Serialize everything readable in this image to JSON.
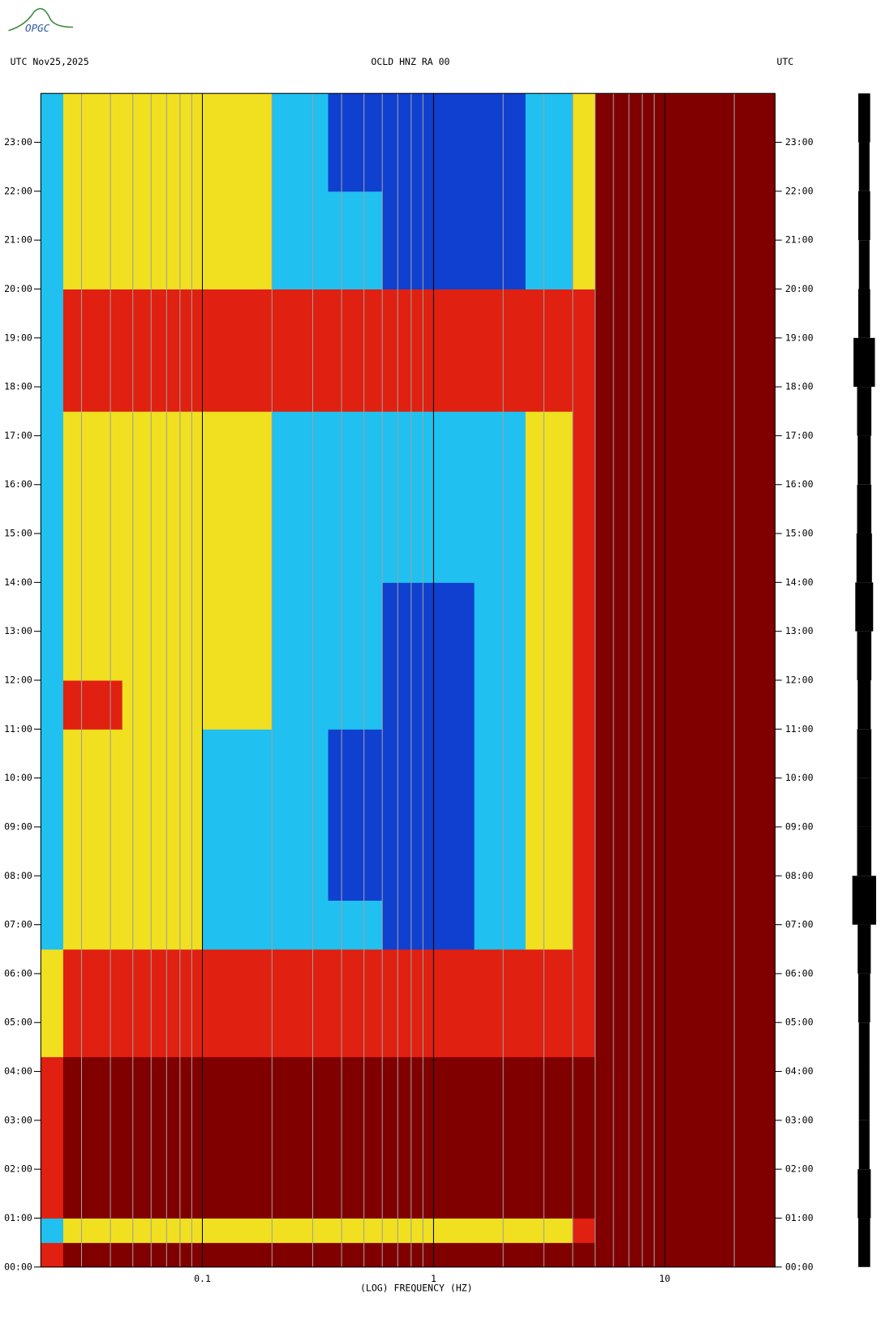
{
  "chart_data": {
    "type": "spectrogram",
    "logo": "OPGC",
    "title_left": "UTC  Nov25,2025",
    "title": "OCLD HNZ RA 00",
    "title_right": "UTC",
    "xlabel": "(LOG) FREQUENCY (HZ)",
    "log_x": true,
    "xlim": [
      0.02,
      30
    ],
    "xticks": [
      0.1,
      1,
      10
    ],
    "x_minor_grid": [
      0.03,
      0.04,
      0.05,
      0.06,
      0.07,
      0.08,
      0.09,
      0.2,
      0.3,
      0.4,
      0.5,
      0.6,
      0.7,
      0.8,
      0.9,
      2,
      3,
      4,
      5,
      6,
      7,
      8,
      9,
      20
    ],
    "ylim": [
      0,
      24
    ],
    "yticks": [
      {
        "value": 0,
        "label": "00:00"
      },
      {
        "value": 1,
        "label": "01:00"
      },
      {
        "value": 2,
        "label": "02:00"
      },
      {
        "value": 3,
        "label": "03:00"
      },
      {
        "value": 4,
        "label": "04:00"
      },
      {
        "value": 5,
        "label": "05:00"
      },
      {
        "value": 6,
        "label": "06:00"
      },
      {
        "value": 7,
        "label": "07:00"
      },
      {
        "value": 8,
        "label": "08:00"
      },
      {
        "value": 9,
        "label": "09:00"
      },
      {
        "value": 10,
        "label": "10:00"
      },
      {
        "value": 11,
        "label": "11:00"
      },
      {
        "value": 12,
        "label": "12:00"
      },
      {
        "value": 13,
        "label": "13:00"
      },
      {
        "value": 14,
        "label": "14:00"
      },
      {
        "value": 15,
        "label": "15:00"
      },
      {
        "value": 16,
        "label": "16:00"
      },
      {
        "value": 17,
        "label": "17:00"
      },
      {
        "value": 18,
        "label": "18:00"
      },
      {
        "value": 19,
        "label": "19:00"
      },
      {
        "value": 20,
        "label": "20:00"
      },
      {
        "value": 21,
        "label": "21:00"
      },
      {
        "value": 22,
        "label": "22:00"
      },
      {
        "value": 23,
        "label": "23:00"
      }
    ],
    "colors": [
      "#1040d0",
      "#20c0f0",
      "#f0e020",
      "#e02010",
      "#800000"
    ],
    "x_edges": [
      0.02,
      0.025,
      0.045,
      0.1,
      0.2,
      0.35,
      0.6,
      1.5,
      2.5,
      4,
      5,
      30
    ],
    "time_edges": [
      0,
      0.5,
      1,
      4.3,
      6.5,
      7.5,
      11,
      12,
      14,
      17.5,
      20,
      22,
      24
    ],
    "levels": [
      [
        3,
        4,
        4,
        4,
        4,
        4,
        4,
        4,
        4,
        4,
        4
      ],
      [
        1,
        2,
        2,
        2,
        2,
        2,
        2,
        2,
        2,
        3,
        4
      ],
      [
        3,
        4,
        4,
        4,
        4,
        4,
        4,
        4,
        4,
        4,
        4
      ],
      [
        2,
        3,
        3,
        3,
        3,
        3,
        3,
        3,
        3,
        3,
        4
      ],
      [
        1,
        2,
        2,
        1,
        1,
        1,
        0,
        1,
        2,
        3,
        4
      ],
      [
        1,
        2,
        2,
        1,
        1,
        0,
        0,
        1,
        2,
        3,
        4
      ],
      [
        1,
        3,
        2,
        2,
        1,
        1,
        0,
        1,
        2,
        3,
        4
      ],
      [
        1,
        2,
        2,
        2,
        1,
        1,
        0,
        1,
        2,
        3,
        4
      ],
      [
        1,
        2,
        2,
        2,
        1,
        1,
        1,
        1,
        2,
        3,
        4
      ],
      [
        1,
        3,
        3,
        3,
        3,
        3,
        3,
        3,
        3,
        3,
        4
      ],
      [
        1,
        2,
        2,
        2,
        1,
        1,
        0,
        0,
        1,
        2,
        4
      ],
      [
        1,
        2,
        2,
        2,
        1,
        0,
        0,
        0,
        1,
        2,
        4
      ]
    ],
    "trace_envelope": [
      0.5,
      0.55,
      0.45,
      0.45,
      0.45,
      0.5,
      0.55,
      1.0,
      0.6,
      0.6,
      0.6,
      0.55,
      0.6,
      0.75,
      0.65,
      0.6,
      0.55,
      0.6,
      0.9,
      0.5,
      0.45,
      0.5,
      0.45,
      0.5
    ]
  }
}
